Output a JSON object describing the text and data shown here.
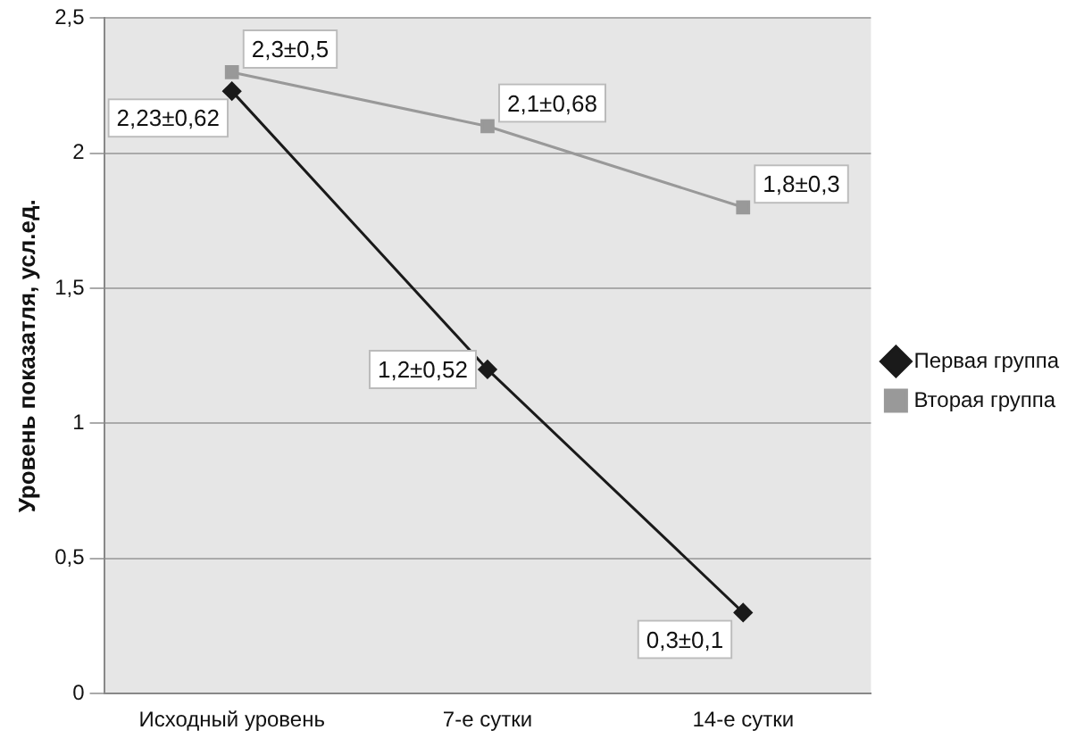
{
  "chart_data": {
    "type": "line",
    "ylabel": "Уровень показатля, усл.ед.",
    "categories": [
      "Исходный уровень",
      "7-е сутки",
      "14-е сутки"
    ],
    "series": [
      {
        "name": "Первая группа",
        "color": "#1a1a1a",
        "marker": "diamond",
        "values": [
          2.23,
          1.2,
          0.3
        ],
        "value_labels": [
          "2,23±0,62",
          "1,2±0,52",
          "0,3±0,1"
        ]
      },
      {
        "name": "Вторая группа",
        "color": "#999999",
        "marker": "square",
        "values": [
          2.3,
          2.1,
          1.8
        ],
        "value_labels": [
          "2,3±0,5",
          "2,1±0,68",
          "1,8±0,3"
        ]
      }
    ],
    "ylim": [
      0,
      2.5
    ],
    "yticks": [
      0,
      {
        "value": 0.5,
        "label": "0,5"
      },
      1,
      {
        "value": 1.5,
        "label": "1,5"
      },
      2,
      {
        "value": 2.5,
        "label": "2,5"
      }
    ],
    "grid": "y",
    "legend": "right",
    "line_style": "solid"
  }
}
